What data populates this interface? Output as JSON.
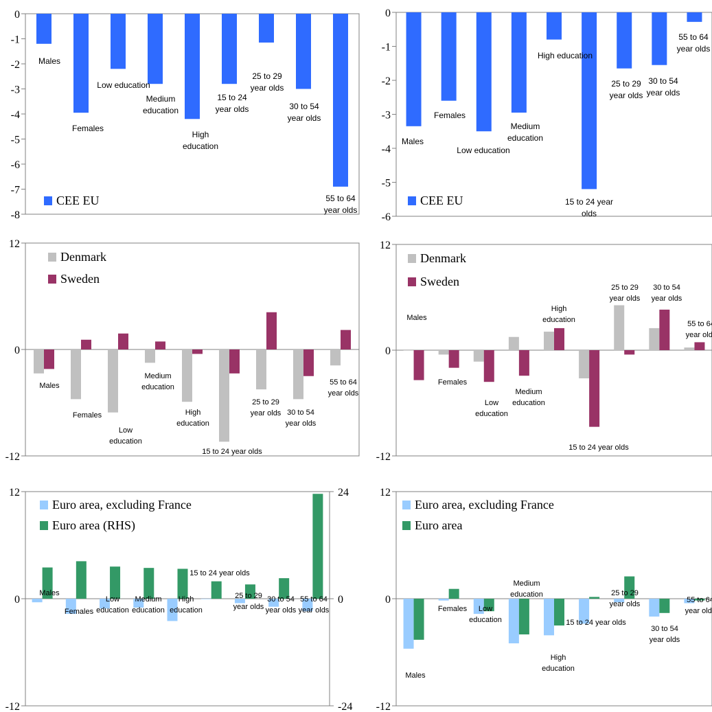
{
  "colors": {
    "cee": "#2f6bff",
    "denmark": "#c0c0c0",
    "sweden": "#993366",
    "ea_excl": "#99ccff",
    "ea": "#339966",
    "axis": "#808080"
  },
  "chart_data": [
    {
      "type": "bar",
      "legend": [
        "CEE EU"
      ],
      "legend_placement": "bottom-left",
      "categories": [
        "Males",
        "Females",
        "Low  education",
        "Medium education",
        "High education",
        "15 to 24 year olds",
        "25 to 29 year olds",
        "30 to 54 year olds",
        "55 to 64 year olds"
      ],
      "category_labels": [
        [
          "Males"
        ],
        [
          "Females"
        ],
        [
          "Low  education"
        ],
        [
          "Medium",
          "education"
        ],
        [
          "High",
          "education"
        ],
        [
          "15 to 24",
          "year olds"
        ],
        [
          "25 to 29",
          "year olds"
        ],
        [
          "30 to 54",
          "year olds"
        ],
        [
          "55 to 64",
          "year olds"
        ]
      ],
      "series": [
        {
          "name": "CEE EU",
          "values": [
            -1.2,
            -3.95,
            -2.2,
            -2.8,
            -4.2,
            -2.8,
            -1.15,
            -3.0,
            -6.9
          ]
        }
      ],
      "ylim": [
        -8,
        0
      ],
      "yticks": [
        "0",
        "-1",
        "-2",
        "-3",
        "-4",
        "-5",
        "-6",
        "-7",
        "-8"
      ]
    },
    {
      "type": "bar",
      "legend": [
        "CEE EU"
      ],
      "legend_placement": "bottom-left",
      "categories": [
        "Males",
        "Females",
        "Low  education",
        "Medium education",
        "High education",
        "15 to 24 year olds",
        "25 to 29 year olds",
        "30 to 54 year olds",
        "55 to 64 year olds"
      ],
      "category_labels": [
        [
          "Males"
        ],
        [
          "Females"
        ],
        [
          "Low  education"
        ],
        [
          "Medium",
          "education"
        ],
        [
          "High education"
        ],
        [
          "15 to 24 year",
          "olds"
        ],
        [
          "25 to 29",
          "year olds"
        ],
        [
          "30 to 54",
          "year olds"
        ],
        [
          "55 to 64",
          "year olds"
        ]
      ],
      "series": [
        {
          "name": "CEE EU",
          "values": [
            -3.35,
            -2.6,
            -3.5,
            -2.95,
            -0.8,
            -5.2,
            -1.65,
            -1.55,
            -0.28
          ]
        }
      ],
      "ylim": [
        -6,
        0
      ],
      "yticks": [
        "0",
        "-1",
        "-2",
        "-3",
        "-4",
        "-5",
        "-6"
      ]
    },
    {
      "type": "bar",
      "legend": [
        "Denmark",
        "Sweden"
      ],
      "legend_placement": "top-left",
      "categories": [
        "Males",
        "Females",
        "Low education",
        "Medium education",
        "High education",
        "15 to 24 year olds",
        "25 to 29 year olds",
        "30 to 54 year olds",
        "55 to 64 year olds"
      ],
      "category_labels": [
        [
          "Males"
        ],
        [
          "Females"
        ],
        [
          "Low",
          "education"
        ],
        [
          "Medium",
          "education"
        ],
        [
          "High",
          "education"
        ],
        [
          "15 to 24 year olds"
        ],
        [
          "25 to 29",
          "year olds"
        ],
        [
          "30 to 54",
          "year olds"
        ],
        [
          "55 to 64",
          "year olds"
        ]
      ],
      "series": [
        {
          "name": "Denmark",
          "values": [
            -2.7,
            -5.6,
            -7.1,
            -1.5,
            -5.9,
            -10.4,
            -4.5,
            -5.6,
            -1.8
          ]
        },
        {
          "name": "Sweden",
          "values": [
            -2.2,
            1.1,
            1.8,
            0.9,
            -0.5,
            -2.7,
            4.2,
            -3.0,
            2.2
          ]
        }
      ],
      "ylim": [
        -12,
        12
      ],
      "yticks": [
        "12",
        "0",
        "-12"
      ]
    },
    {
      "type": "bar",
      "legend": [
        "Denmark",
        "Sweden"
      ],
      "legend_placement": "top-left",
      "categories": [
        "Males",
        "Females",
        "Low education",
        "Medium education",
        "High education",
        "15 to 24 year olds",
        "25 to 29 year olds",
        "30 to 54 year olds",
        "55 to 64 year olds"
      ],
      "category_labels": [
        [
          "Males"
        ],
        [
          "Females"
        ],
        [
          "Low",
          "education"
        ],
        [
          "Medium",
          "education"
        ],
        [
          "High",
          "education"
        ],
        [
          "15 to 24 year olds"
        ],
        [
          "25 to 29",
          "year olds"
        ],
        [
          "30 to 54",
          "year olds"
        ],
        [
          "55 to 64",
          "year olds"
        ]
      ],
      "series": [
        {
          "name": "Denmark",
          "values": [
            0,
            -0.5,
            -1.3,
            1.5,
            2.1,
            -3.2,
            5.1,
            2.5,
            0.3
          ]
        },
        {
          "name": "Sweden",
          "values": [
            -3.4,
            -2.0,
            -3.6,
            -2.9,
            2.5,
            -8.7,
            -0.5,
            4.6,
            0.9
          ]
        }
      ],
      "ylim": [
        -12,
        12
      ],
      "yticks": [
        "12",
        "0",
        "-12"
      ]
    },
    {
      "type": "bar",
      "legend": [
        "Euro area, excluding France",
        "Euro area (RHS)"
      ],
      "legend_placement": "top-left",
      "categories": [
        "Males",
        "Females",
        "Low education",
        "Medium education",
        "High education",
        "15 to 24 year olds",
        "25 to 29 year olds",
        "30 to 54 year olds",
        "55 to 64 year olds"
      ],
      "category_labels": [
        [
          "Males"
        ],
        [
          "Females"
        ],
        [
          "Low",
          "education"
        ],
        [
          "Medium",
          "education"
        ],
        [
          "High",
          "education"
        ],
        [
          "15 to 24 year olds"
        ],
        [
          "25 to 29",
          "year olds"
        ],
        [
          "30 to 54",
          "year olds"
        ],
        [
          "55 to 64",
          "year olds"
        ]
      ],
      "series": [
        {
          "name": "Euro area, excluding France",
          "axis": "left",
          "values": [
            -0.4,
            -1.7,
            -1.1,
            -1.0,
            -2.5,
            0,
            -0.5,
            -0.9,
            -1.4
          ]
        },
        {
          "name": "Euro area (RHS)",
          "axis": "right",
          "values": [
            7.0,
            8.4,
            7.2,
            6.9,
            6.7,
            3.9,
            3.2,
            4.6,
            23.5
          ]
        }
      ],
      "ylim": [
        -12,
        12
      ],
      "ylim_right": [
        -24,
        24
      ],
      "yticks": [
        "12",
        "0",
        "-12"
      ],
      "yticks_right": [
        "24",
        "0",
        "-24"
      ]
    },
    {
      "type": "bar",
      "legend": [
        "Euro area, excluding France",
        "Euro area"
      ],
      "legend_placement": "top-left",
      "categories": [
        "Males",
        "Females",
        "Low education",
        "Medium education",
        "High education",
        "15 to 24 year olds",
        "25 to 29 year olds",
        "30 to 54 year olds",
        "55 to 64 year olds"
      ],
      "category_labels": [
        [
          "Males"
        ],
        [
          "Females"
        ],
        [
          "Low",
          "education"
        ],
        [
          "Medium",
          "education"
        ],
        [
          "High",
          "education"
        ],
        [
          "15 to 24 year olds"
        ],
        [
          "25 to 29",
          "year olds"
        ],
        [
          "30 to 54",
          "year olds"
        ],
        [
          "55 to 64",
          "year olds"
        ]
      ],
      "series": [
        {
          "name": "Euro area, excluding France",
          "values": [
            -5.6,
            -0.2,
            -1.7,
            -5.0,
            -4.1,
            -2.8,
            -0.4,
            -2.0,
            -0.5
          ]
        },
        {
          "name": "Euro area",
          "values": [
            -4.6,
            1.1,
            -1.4,
            -4.0,
            -3.0,
            0.2,
            2.5,
            -1.6,
            -0.2
          ]
        }
      ],
      "ylim": [
        -12,
        12
      ],
      "yticks": [
        "12",
        "0",
        "-12"
      ]
    }
  ]
}
